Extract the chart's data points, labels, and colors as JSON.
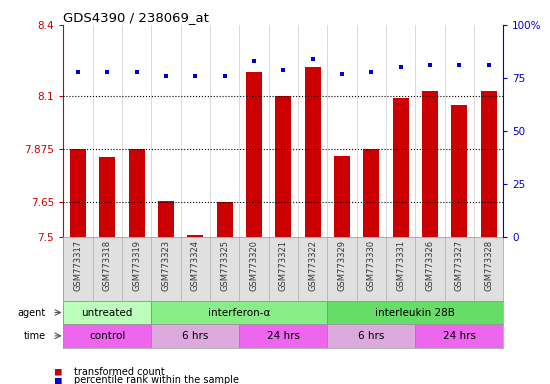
{
  "title": "GDS4390 / 238069_at",
  "samples": [
    "GSM773317",
    "GSM773318",
    "GSM773319",
    "GSM773323",
    "GSM773324",
    "GSM773325",
    "GSM773320",
    "GSM773321",
    "GSM773322",
    "GSM773329",
    "GSM773330",
    "GSM773331",
    "GSM773326",
    "GSM773327",
    "GSM773328"
  ],
  "red_values": [
    7.875,
    7.84,
    7.875,
    7.655,
    7.51,
    7.65,
    8.2,
    8.1,
    8.22,
    7.845,
    7.875,
    8.09,
    8.12,
    8.06,
    8.12
  ],
  "blue_values": [
    78,
    78,
    78,
    76,
    76,
    76,
    83,
    79,
    84,
    77,
    78,
    80,
    81,
    81,
    81
  ],
  "ymin": 7.5,
  "ymax": 8.4,
  "yticks": [
    7.5,
    7.65,
    7.875,
    8.1,
    8.4
  ],
  "ytick_labels": [
    "7.5",
    "7.65",
    "7.875",
    "8.1",
    "8.4"
  ],
  "y2min": 0,
  "y2max": 100,
  "y2ticks": [
    0,
    25,
    50,
    75,
    100
  ],
  "y2tick_labels": [
    "0",
    "25",
    "50",
    "75",
    "100%"
  ],
  "hlines": [
    8.1,
    7.875,
    7.65
  ],
  "agent_groups": [
    {
      "label": "untreated",
      "start": 0,
      "end": 3,
      "color": "#bbffbb"
    },
    {
      "label": "interferon-α",
      "start": 3,
      "end": 9,
      "color": "#88ee88"
    },
    {
      "label": "interleukin 28B",
      "start": 9,
      "end": 15,
      "color": "#66dd66"
    }
  ],
  "time_groups": [
    {
      "label": "control",
      "start": 0,
      "end": 3,
      "color": "#ee66ee"
    },
    {
      "label": "6 hrs",
      "start": 3,
      "end": 6,
      "color": "#ddaadd"
    },
    {
      "label": "24 hrs",
      "start": 6,
      "end": 9,
      "color": "#ee66ee"
    },
    {
      "label": "6 hrs",
      "start": 9,
      "end": 12,
      "color": "#ddaadd"
    },
    {
      "label": "24 hrs",
      "start": 12,
      "end": 15,
      "color": "#ee66ee"
    }
  ],
  "bar_color": "#CC0000",
  "dot_color": "#0000CC",
  "bar_width": 0.55,
  "legend_items": [
    {
      "label": "transformed count",
      "color": "#CC0000"
    },
    {
      "label": "percentile rank within the sample",
      "color": "#0000CC"
    }
  ]
}
